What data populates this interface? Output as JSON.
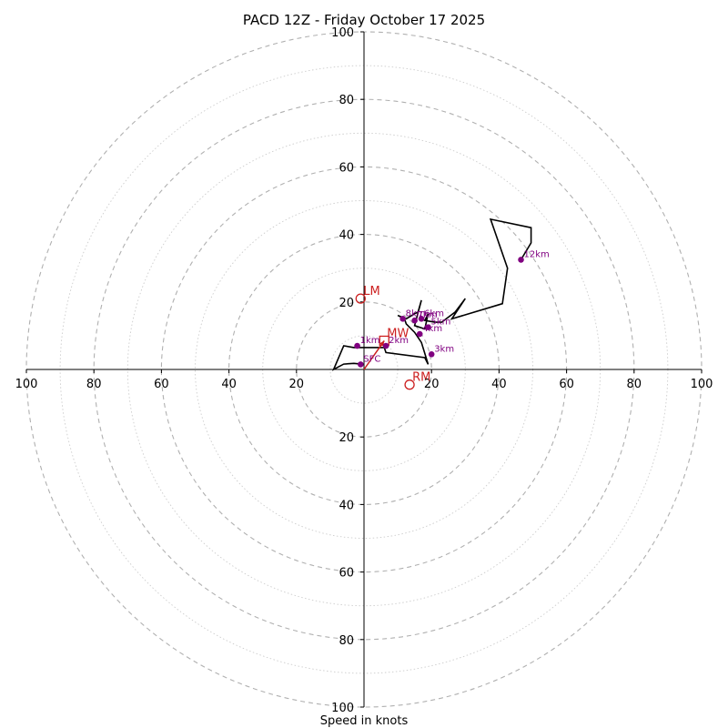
{
  "chart_data": {
    "type": "hodograph",
    "title": "PACD 12Z - Friday October 17 2025",
    "xlabel": "Speed in knots",
    "units": "knots",
    "range": [
      -100,
      100
    ],
    "ring_major_step": 20,
    "ring_minor_step": 10,
    "axis_ticks": [
      "100",
      "80",
      "60",
      "40",
      "20",
      "20",
      "40",
      "60",
      "80",
      "100"
    ],
    "tick_values": {
      "x": [
        -100,
        -80,
        -60,
        -40,
        -20,
        20,
        40,
        60,
        80,
        100
      ],
      "y": [
        100,
        80,
        60,
        40,
        20,
        -20,
        -40,
        -60,
        -80,
        -100
      ],
      "x_labels": [
        "100",
        "80",
        "60",
        "40",
        "20",
        "20",
        "40",
        "60",
        "80",
        "100"
      ],
      "y_labels": [
        "100",
        "80",
        "60",
        "40",
        "20",
        "20",
        "40",
        "60",
        "80",
        "100"
      ]
    },
    "colors": {
      "trace": "#000000",
      "height_marker": "#800080",
      "storm_motion": "#cc1f1f",
      "major_ring": "#b0b0b0",
      "minor_ring": "#cccccc",
      "axes": "#000000"
    },
    "wind_trace": [
      [
        0,
        1.5
      ],
      [
        -3,
        1.8
      ],
      [
        -6,
        1.6
      ],
      [
        -9,
        0
      ],
      [
        -6,
        7
      ],
      [
        -3,
        6.5
      ],
      [
        -1,
        6.5
      ],
      [
        6,
        6.5
      ],
      [
        6.5,
        5
      ],
      [
        18,
        3.5
      ],
      [
        19,
        1.5
      ],
      [
        17,
        8
      ],
      [
        15,
        11
      ],
      [
        12.5,
        13.5
      ],
      [
        12,
        15
      ],
      [
        10,
        16
      ],
      [
        12.5,
        15
      ],
      [
        15,
        16.5
      ],
      [
        16,
        17
      ],
      [
        17,
        20.5
      ],
      [
        15,
        13
      ],
      [
        18,
        12
      ],
      [
        19,
        16.5
      ],
      [
        18,
        14.5
      ],
      [
        21,
        14
      ],
      [
        23,
        14
      ],
      [
        27,
        17
      ],
      [
        30,
        21
      ],
      [
        26,
        15
      ],
      [
        41,
        19.5
      ],
      [
        42.5,
        30
      ],
      [
        37.5,
        44.5
      ],
      [
        49.5,
        42
      ],
      [
        49.5,
        37.5
      ],
      [
        46.5,
        32.5
      ]
    ],
    "height_markers": [
      {
        "label": "SFC",
        "u": -1,
        "v": 1.5
      },
      {
        "label": "1km",
        "u": -2,
        "v": 7
      },
      {
        "label": "2km",
        "u": 6.5,
        "v": 7
      },
      {
        "label": "3km",
        "u": 20,
        "v": 4.5
      },
      {
        "label": "4km",
        "u": 16.5,
        "v": 10.5
      },
      {
        "label": "5km",
        "u": 19,
        "v": 12.5
      },
      {
        "label": "6km",
        "u": 17,
        "v": 15
      },
      {
        "label": "7km",
        "u": 15,
        "v": 14.5
      },
      {
        "label": "8km",
        "u": 11.5,
        "v": 15
      },
      {
        "label": "12km",
        "u": 46.5,
        "v": 32.5
      }
    ],
    "storm_motion": [
      {
        "label": "LM",
        "u": -1,
        "v": 21
      },
      {
        "label": "MW",
        "u": 6,
        "v": 8.5
      },
      {
        "label": "RM",
        "u": 13.5,
        "v": -4.5
      }
    ],
    "mean_wind_vector": {
      "u": 6,
      "v": 8.5
    }
  }
}
